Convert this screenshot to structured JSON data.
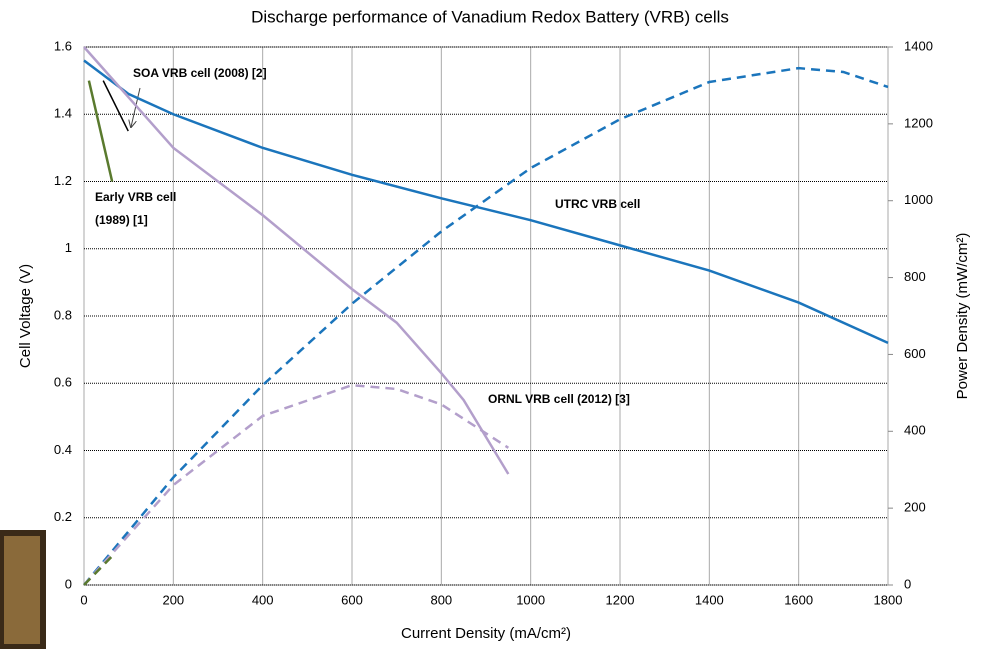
{
  "chart_data": {
    "type": "line",
    "title": "Discharge performance of Vanadium Redox Battery (VRB) cells",
    "x_label": "Current Density (mA/cm²)",
    "y_label": "Cell Voltage (V)",
    "y2_label": "Power Density (mW/cm²)",
    "xlim": [
      0,
      1800
    ],
    "xticks": [
      0,
      200,
      400,
      600,
      800,
      1000,
      1200,
      1400,
      1600,
      1800
    ],
    "ylim": [
      0,
      1.6
    ],
    "yticks": [
      0,
      0.2,
      0.4,
      0.6,
      0.8,
      1,
      1.2,
      1.4,
      1.6
    ],
    "y2lim": [
      0,
      1400
    ],
    "y2ticks": [
      0,
      200,
      400,
      600,
      800,
      1000,
      1200,
      1400
    ],
    "grid": true,
    "series": [
      {
        "color": "#1b75bc",
        "dash": false,
        "axis": "y",
        "x": [
          0,
          100,
          200,
          400,
          600,
          800,
          1000,
          1200,
          1400,
          1600,
          1800
        ],
        "values": [
          1.56,
          1.46,
          1.4,
          1.3,
          1.22,
          1.15,
          1.085,
          1.01,
          0.935,
          0.84,
          0.72
        ]
      },
      {
        "color": "#1b75bc",
        "dash": true,
        "axis": "y2",
        "x": [
          0,
          200,
          400,
          600,
          800,
          1000,
          1200,
          1400,
          1600,
          1700,
          1800
        ],
        "values": [
          0,
          280,
          520,
          732,
          920,
          1085,
          1212,
          1309,
          1345,
          1335,
          1296
        ]
      },
      {
        "color": "#b39fcb",
        "dash": false,
        "axis": "y",
        "x": [
          0,
          100,
          200,
          400,
          600,
          700,
          800,
          850,
          950
        ],
        "values": [
          1.6,
          1.45,
          1.3,
          1.1,
          0.88,
          0.78,
          0.63,
          0.55,
          0.33
        ]
      },
      {
        "color": "#b39fcb",
        "dash": true,
        "axis": "y2",
        "x": [
          0,
          200,
          400,
          600,
          700,
          800,
          950
        ],
        "values": [
          0,
          260,
          440,
          520,
          510,
          470,
          357
        ]
      },
      {
        "color": "#5a7a2e",
        "dash": false,
        "axis": "y",
        "x": [
          11,
          63
        ],
        "values": [
          1.5,
          1.2
        ]
      },
      {
        "color": "#5a7a2e",
        "dash": true,
        "axis": "y2",
        "x": [
          0,
          63
        ],
        "values": [
          0,
          75
        ]
      },
      {
        "color": "#000000",
        "dash": false,
        "axis": "y",
        "x": [
          43,
          99
        ],
        "values": [
          1.5,
          1.35
        ]
      }
    ],
    "annotations": [
      {
        "text": [
          "SOA VRB cell  (2008) [2]"
        ],
        "color": "#404040"
      },
      {
        "text": [
          "Early VRB cell",
          "(1989) [1]"
        ],
        "color": "#5a7a2e"
      },
      {
        "text": [
          "UTRC VRB cell"
        ],
        "color": "#1b75bc"
      },
      {
        "text": [
          "ORNL VRB cell  (2012) [3]"
        ],
        "color": "#b39fcb"
      }
    ]
  }
}
